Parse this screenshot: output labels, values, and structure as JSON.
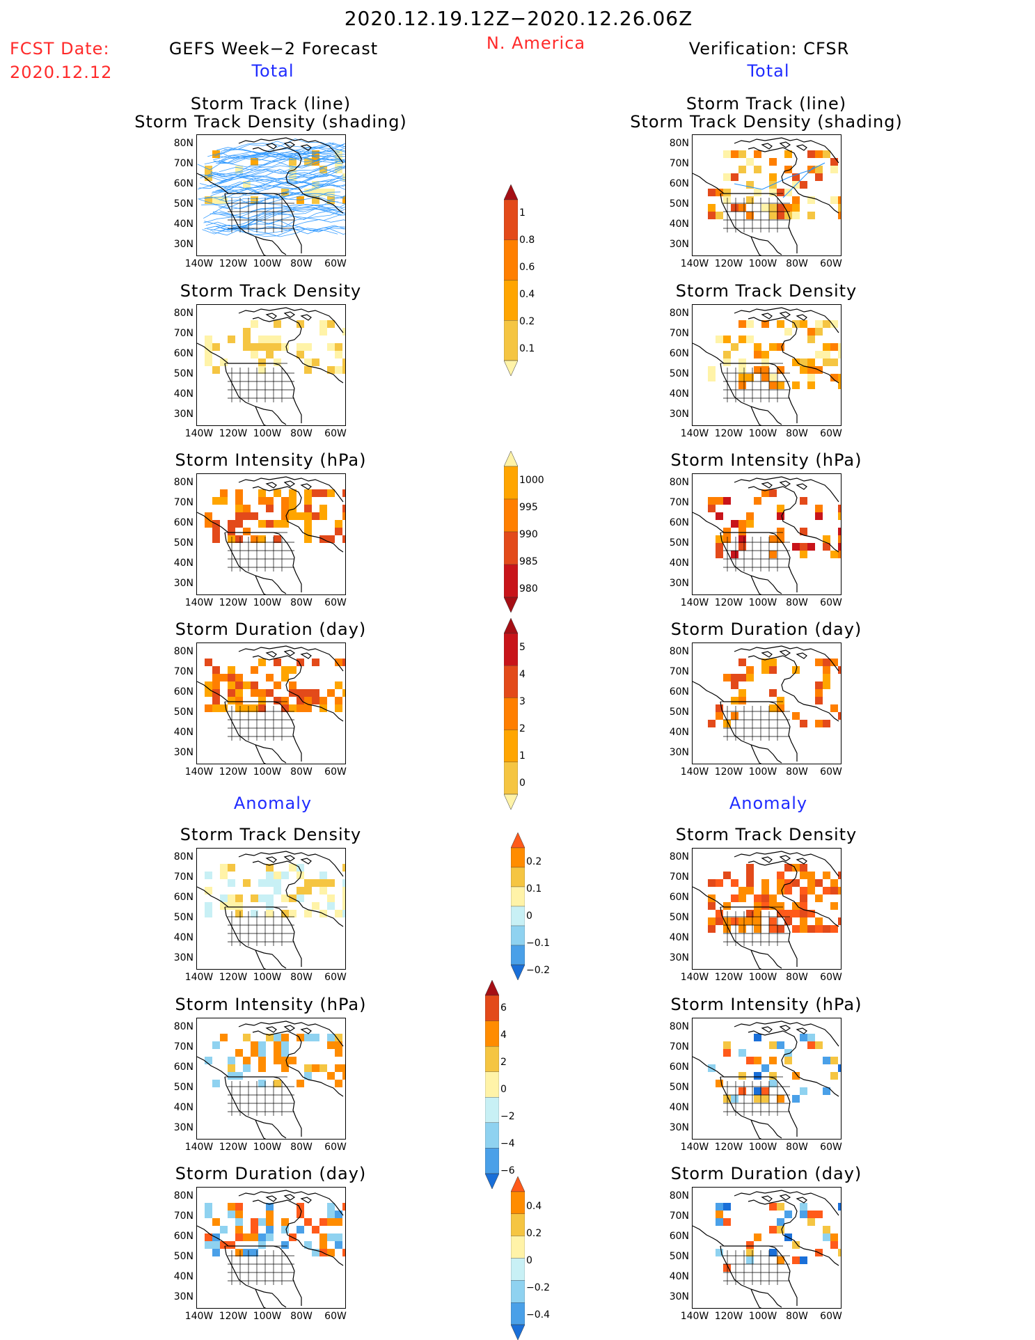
{
  "header": {
    "date_range": "2020.12.19.12Z−2020.12.26.06Z",
    "region": "N. America",
    "fcst_label": "FCST Date:",
    "fcst_date": "2020.12.12",
    "left_title": "GEFS Week−2 Forecast",
    "right_title": "Verification: CFSR",
    "left_total": "Total",
    "right_total": "Total",
    "left_anomaly": "Anomaly",
    "right_anomaly": "Anomaly"
  },
  "panel_titles": {
    "track_line": "Storm Track (line)",
    "track_shading": "Storm Track Density (shading)",
    "density": "Storm Track Density",
    "intensity": "Storm Intensity (hPa)",
    "duration": "Storm Duration (day)"
  },
  "axis": {
    "lat": [
      "80N",
      "70N",
      "60N",
      "50N",
      "40N",
      "30N"
    ],
    "lon": [
      "140W",
      "120W",
      "100W",
      "80W",
      "60W"
    ]
  },
  "colorbars": {
    "total_density": {
      "labels": [
        "1",
        "0.8",
        "0.6",
        "0.4",
        "0.2",
        "0.1"
      ],
      "colors": [
        "#a50f15",
        "#e34a1a",
        "#ff7f00",
        "#ffa500",
        "#f5c542",
        "#fff3a8"
      ]
    },
    "total_intensity": {
      "labels": [
        "1000",
        "995",
        "990",
        "985",
        "980"
      ],
      "colors": [
        "#fff3a8",
        "#ffa500",
        "#ff7f00",
        "#e34a1a",
        "#c8141a",
        "#a50f15"
      ]
    },
    "total_duration": {
      "labels": [
        "5",
        "4",
        "3",
        "2",
        "1",
        "0"
      ],
      "colors": [
        "#a50f15",
        "#c8141a",
        "#e34a1a",
        "#ff7f00",
        "#ffa500",
        "#f5c542",
        "#fff3a8"
      ]
    },
    "anom_density": {
      "labels": [
        "0.2",
        "0.1",
        "0",
        "−0.1",
        "−0.2"
      ],
      "colors": [
        "#ff5a1a",
        "#ff8c00",
        "#f5c542",
        "#fff3a8",
        "#c8f0f5",
        "#8fd2f0",
        "#4aa0e8",
        "#1a6fd8"
      ]
    },
    "anom_intensity": {
      "labels": [
        "6",
        "4",
        "2",
        "0",
        "−2",
        "−4",
        "−6"
      ],
      "colors": [
        "#a50f15",
        "#e34a1a",
        "#ff8c00",
        "#f5c542",
        "#fff3a8",
        "#c8f0f5",
        "#8fd2f0",
        "#4aa0e8",
        "#1a6fd8"
      ]
    },
    "anom_duration": {
      "labels": [
        "0.4",
        "0.2",
        "0",
        "−0.2",
        "−0.4"
      ],
      "colors": [
        "#ff5a1a",
        "#ff8c00",
        "#f5c542",
        "#fff3a8",
        "#c8f0f5",
        "#8fd2f0",
        "#4aa0e8",
        "#1a6fd8"
      ]
    }
  },
  "palette": {
    "header_red": "#ff2a2a",
    "header_blue": "#1f2bff",
    "track_line": "#1e90ff"
  }
}
